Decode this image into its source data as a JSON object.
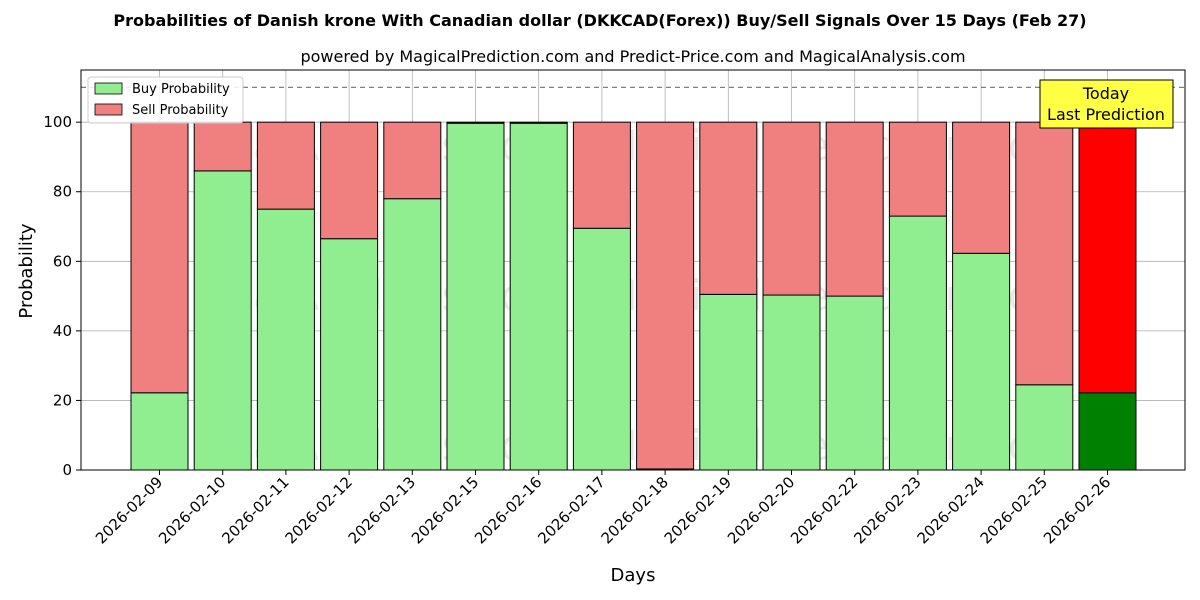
{
  "chart_data": {
    "type": "bar",
    "stacked": true,
    "title": "Probabilities of Danish krone With Canadian dollar (DKKCAD(Forex)) Buy/Sell Signals Over 15 Days (Feb 27)",
    "subtitle": "powered by MagicalPrediction.com and Predict-Price.com and MagicalAnalysis.com",
    "xlabel": "Days",
    "ylabel": "Probability",
    "ylim": [
      0,
      115
    ],
    "yticks": [
      0,
      20,
      40,
      60,
      80,
      100
    ],
    "grid": true,
    "legend_position": "top-left",
    "reference_line": 110,
    "categories": [
      "2026-02-09",
      "2026-02-10",
      "2026-02-11",
      "2026-02-12",
      "2026-02-13",
      "2026-02-15",
      "2026-02-16",
      "2026-02-17",
      "2026-02-18",
      "2026-02-19",
      "2026-02-20",
      "2026-02-22",
      "2026-02-23",
      "2026-02-24",
      "2026-02-25",
      "2026-02-26"
    ],
    "series": [
      {
        "name": "Buy Probability",
        "color": "#90ee90",
        "highlight_color": "#008000",
        "values": [
          22.2,
          86.0,
          75.0,
          66.5,
          78.0,
          99.7,
          99.7,
          69.5,
          0.3,
          50.5,
          50.3,
          50.0,
          73.0,
          62.3,
          24.5,
          22.2
        ]
      },
      {
        "name": "Sell Probability",
        "color": "#f08080",
        "highlight_color": "#ff0000",
        "values": [
          77.8,
          14.0,
          25.0,
          33.5,
          22.0,
          0.3,
          0.3,
          30.5,
          99.7,
          49.5,
          49.7,
          50.0,
          27.0,
          37.7,
          75.5,
          77.8
        ]
      }
    ],
    "highlight_index": 15,
    "annotation": {
      "lines": [
        "Today",
        "Last Prediction"
      ],
      "background": "#ffff44"
    },
    "watermarks": [
      "MagicalAnalysis.com",
      "MagicalPrediction.com",
      "MagicalAnalysis.com",
      "MagicalPrediction.com",
      "MagicalAnalysis.com",
      "MagicalPrediction.com"
    ]
  }
}
